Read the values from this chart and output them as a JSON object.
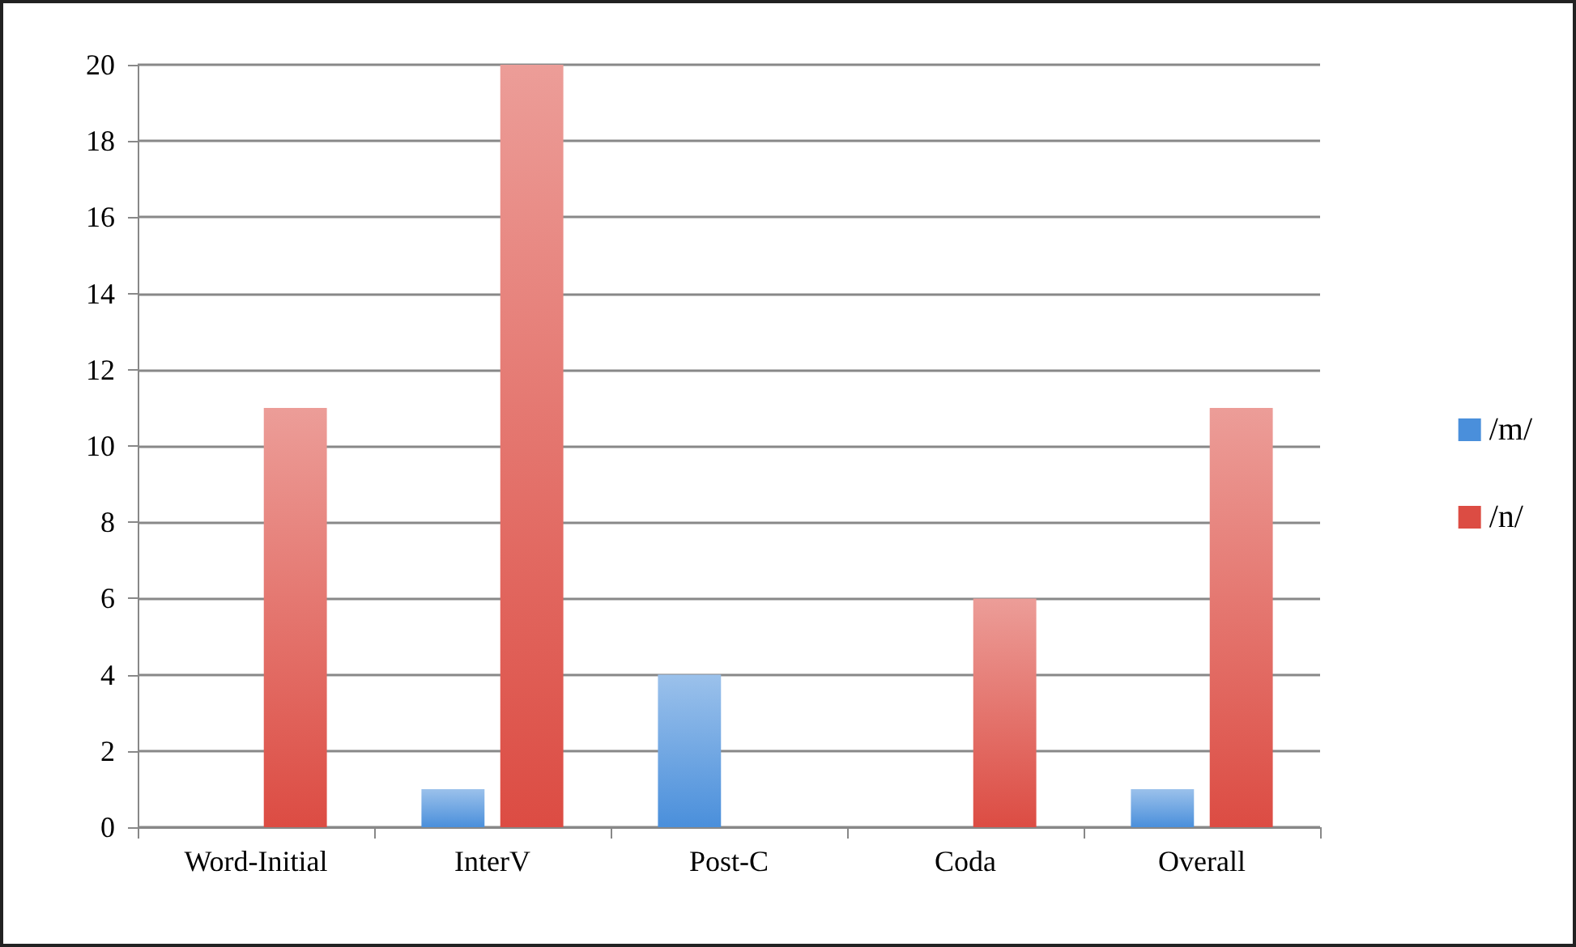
{
  "chart_data": {
    "type": "bar",
    "categories": [
      "Word-Initial",
      "InterV",
      "Post-C",
      "Coda",
      "Overall"
    ],
    "series": [
      {
        "name": "/m/",
        "color": "#4a8fdb",
        "values": [
          0,
          1,
          4,
          0,
          1
        ]
      },
      {
        "name": "/n/",
        "color": "#dc4c43",
        "values": [
          11,
          20,
          0,
          6,
          11
        ]
      }
    ],
    "ylim": [
      0,
      20
    ],
    "yticks": [
      0,
      2,
      4,
      6,
      8,
      10,
      12,
      14,
      16,
      18,
      20
    ],
    "grid": "y",
    "legend": "right"
  }
}
